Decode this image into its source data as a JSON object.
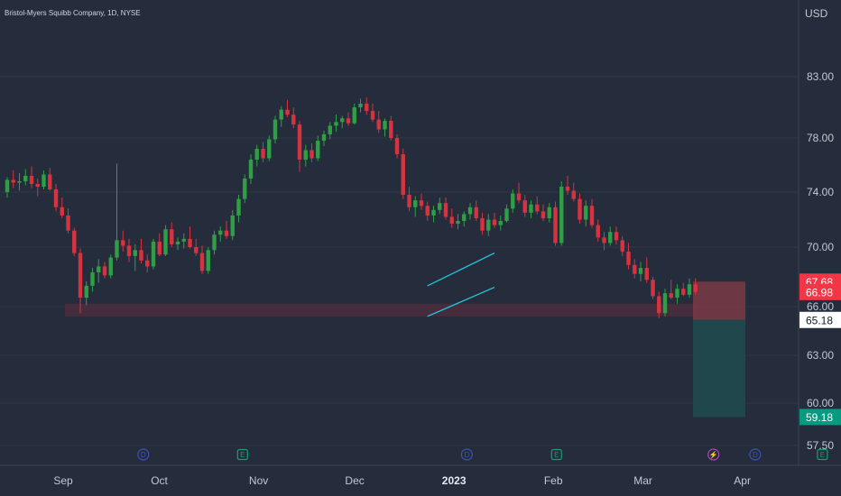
{
  "header": {
    "title": "Bristol-Myers Squibb Company, 1D, NYSE",
    "currency": "USD"
  },
  "chart_data": {
    "type": "candlestick",
    "title": "Bristol-Myers Squibb Company, 1D, NYSE",
    "currency": "USD",
    "ylim": [
      56.5,
      85.5
    ],
    "y_ticks": [
      57.5,
      60.0,
      63.0,
      66.0,
      70.0,
      74.0,
      78.0,
      83.0
    ],
    "x_ticks": [
      {
        "label": "Sep",
        "date": "2022-09-01"
      },
      {
        "label": "Oct",
        "date": "2022-10-01"
      },
      {
        "label": "Nov",
        "date": "2022-11-01"
      },
      {
        "label": "Dec",
        "date": "2022-12-01"
      },
      {
        "label": "2023",
        "date": "2023-01-01"
      },
      {
        "label": "Feb",
        "date": "2023-02-01"
      },
      {
        "label": "Mar",
        "date": "2023-03-01"
      },
      {
        "label": "Apr",
        "date": "2023-04-01"
      }
    ],
    "price_labels": [
      {
        "value": "67.68",
        "bg": "#f23645"
      },
      {
        "value": "66.98",
        "bg": "#f23645"
      },
      {
        "value": "65.18",
        "bg": "#ffffff"
      },
      {
        "value": "59.18",
        "bg": "#089981"
      }
    ],
    "support_zone": {
      "low": 65.4,
      "high": 66.2
    },
    "channel": {
      "upper": [
        [
          69,
          67.4
        ],
        [
          80,
          69.6
        ]
      ],
      "lower": [
        [
          69,
          65.4
        ],
        [
          80,
          67.3
        ]
      ]
    },
    "position": {
      "entry": 65.18,
      "stop": 67.68,
      "target": 59.18
    },
    "event_markers": [
      {
        "date": "2022-09-26",
        "letter": "D",
        "kind": "dividend"
      },
      {
        "date": "2022-10-27",
        "letter": "E",
        "kind": "earnings"
      },
      {
        "date": "2023-01-05",
        "letter": "D",
        "kind": "dividend"
      },
      {
        "date": "2023-02-02",
        "letter": "E",
        "kind": "earnings"
      },
      {
        "date": "2023-03-23",
        "letter": "⚡",
        "kind": "event"
      },
      {
        "date": "2023-04-05",
        "letter": "D",
        "kind": "dividend"
      },
      {
        "date": "2023-04-26",
        "letter": "E",
        "kind": "earnings"
      }
    ],
    "candles": [
      [
        74.0,
        75.1,
        73.6,
        74.9
      ],
      [
        74.9,
        75.6,
        74.3,
        74.7
      ],
      [
        74.7,
        75.4,
        74.1,
        74.8
      ],
      [
        74.8,
        75.7,
        74.5,
        75.2
      ],
      [
        75.2,
        75.9,
        74.3,
        74.6
      ],
      [
        74.6,
        75.0,
        73.7,
        74.4
      ],
      [
        74.4,
        75.6,
        74.2,
        75.3
      ],
      [
        75.3,
        75.8,
        74.1,
        74.2
      ],
      [
        74.2,
        74.6,
        72.6,
        72.9
      ],
      [
        72.9,
        73.6,
        72.1,
        72.3
      ],
      [
        72.3,
        72.8,
        71.0,
        71.2
      ],
      [
        71.2,
        71.4,
        69.4,
        69.6
      ],
      [
        69.6,
        69.9,
        65.6,
        66.6
      ],
      [
        66.6,
        67.7,
        66.1,
        67.4
      ],
      [
        67.4,
        68.6,
        67.0,
        68.3
      ],
      [
        68.3,
        69.2,
        67.6,
        68.7
      ],
      [
        68.7,
        69.0,
        67.9,
        68.1
      ],
      [
        68.1,
        69.5,
        67.9,
        69.3
      ],
      [
        69.3,
        76.1,
        69.1,
        70.5
      ],
      [
        70.5,
        71.2,
        69.7,
        70.1
      ],
      [
        70.1,
        70.6,
        69.0,
        69.4
      ],
      [
        69.4,
        70.2,
        68.4,
        69.8
      ],
      [
        69.8,
        70.6,
        68.9,
        69.1
      ],
      [
        69.1,
        69.5,
        68.3,
        68.7
      ],
      [
        68.7,
        70.6,
        68.5,
        70.4
      ],
      [
        70.4,
        71.0,
        69.4,
        69.5
      ],
      [
        69.5,
        71.6,
        69.4,
        71.3
      ],
      [
        71.3,
        71.8,
        70.0,
        70.2
      ],
      [
        70.2,
        70.7,
        69.8,
        70.4
      ],
      [
        70.4,
        71.0,
        69.9,
        70.6
      ],
      [
        70.6,
        71.5,
        69.9,
        70.0
      ],
      [
        70.0,
        70.6,
        69.4,
        69.6
      ],
      [
        69.6,
        70.1,
        68.2,
        68.4
      ],
      [
        68.4,
        70.0,
        68.2,
        69.8
      ],
      [
        69.8,
        71.2,
        69.5,
        70.9
      ],
      [
        70.9,
        71.5,
        70.4,
        71.2
      ],
      [
        71.2,
        71.9,
        70.6,
        70.8
      ],
      [
        70.8,
        72.7,
        70.5,
        72.3
      ],
      [
        72.3,
        73.8,
        71.8,
        73.5
      ],
      [
        73.5,
        75.3,
        73.2,
        75.0
      ],
      [
        75.0,
        76.8,
        74.6,
        76.4
      ],
      [
        76.4,
        77.5,
        75.9,
        77.2
      ],
      [
        77.2,
        77.7,
        76.2,
        76.5
      ],
      [
        76.5,
        78.2,
        76.3,
        77.9
      ],
      [
        77.9,
        79.8,
        77.6,
        79.5
      ],
      [
        79.5,
        80.6,
        78.9,
        80.3
      ],
      [
        80.3,
        81.1,
        79.7,
        79.9
      ],
      [
        79.9,
        80.5,
        78.8,
        79.1
      ],
      [
        79.1,
        79.4,
        75.5,
        76.4
      ],
      [
        76.4,
        77.5,
        75.9,
        77.1
      ],
      [
        77.1,
        77.6,
        76.2,
        76.5
      ],
      [
        76.5,
        78.2,
        76.3,
        77.8
      ],
      [
        77.8,
        78.6,
        77.4,
        78.3
      ],
      [
        78.3,
        79.3,
        77.9,
        79.0
      ],
      [
        79.0,
        79.9,
        78.5,
        79.3
      ],
      [
        79.3,
        79.8,
        78.8,
        79.6
      ],
      [
        79.6,
        80.1,
        79.0,
        79.2
      ],
      [
        79.2,
        80.8,
        79.1,
        80.5
      ],
      [
        80.5,
        81.2,
        80.1,
        80.8
      ],
      [
        80.8,
        81.3,
        79.9,
        80.2
      ],
      [
        80.2,
        80.8,
        79.3,
        79.5
      ],
      [
        79.5,
        80.2,
        78.4,
        78.7
      ],
      [
        78.7,
        79.6,
        78.1,
        79.4
      ],
      [
        79.4,
        79.8,
        77.8,
        78.0
      ],
      [
        78.0,
        78.3,
        76.5,
        76.8
      ],
      [
        76.8,
        77.2,
        73.5,
        73.8
      ],
      [
        73.8,
        74.4,
        72.6,
        72.9
      ],
      [
        72.9,
        73.7,
        72.2,
        73.4
      ],
      [
        73.4,
        73.9,
        72.7,
        73.0
      ],
      [
        73.0,
        73.3,
        71.9,
        72.3
      ],
      [
        72.3,
        73.0,
        71.8,
        72.7
      ],
      [
        72.7,
        73.6,
        72.4,
        73.2
      ],
      [
        73.2,
        73.6,
        72.0,
        72.2
      ],
      [
        72.2,
        72.8,
        71.4,
        71.7
      ],
      [
        71.7,
        72.4,
        71.3,
        71.9
      ],
      [
        71.9,
        72.6,
        71.5,
        72.4
      ],
      [
        72.4,
        73.2,
        72.0,
        72.9
      ],
      [
        72.9,
        73.4,
        71.9,
        72.1
      ],
      [
        72.1,
        72.5,
        70.9,
        71.2
      ],
      [
        71.2,
        72.4,
        70.8,
        72.0
      ],
      [
        72.0,
        72.5,
        71.4,
        71.6
      ],
      [
        71.6,
        72.3,
        71.2,
        71.9
      ],
      [
        71.9,
        73.1,
        71.8,
        72.8
      ],
      [
        72.8,
        74.2,
        72.5,
        73.9
      ],
      [
        73.9,
        74.7,
        73.2,
        73.4
      ],
      [
        73.4,
        73.8,
        72.2,
        72.5
      ],
      [
        72.5,
        73.4,
        72.1,
        73.1
      ],
      [
        73.1,
        73.7,
        72.4,
        72.6
      ],
      [
        72.6,
        73.1,
        71.9,
        72.1
      ],
      [
        72.1,
        73.2,
        71.8,
        72.9
      ],
      [
        72.9,
        73.3,
        70.1,
        70.3
      ],
      [
        70.3,
        74.8,
        70.1,
        74.4
      ],
      [
        74.4,
        75.2,
        73.8,
        74.1
      ],
      [
        74.1,
        74.7,
        73.3,
        73.5
      ],
      [
        73.5,
        73.9,
        71.7,
        72.0
      ],
      [
        72.0,
        73.4,
        71.5,
        73.0
      ],
      [
        73.0,
        73.5,
        71.4,
        71.6
      ],
      [
        71.6,
        72.0,
        70.4,
        70.7
      ],
      [
        70.7,
        71.1,
        69.8,
        70.3
      ],
      [
        70.3,
        71.5,
        70.1,
        71.1
      ],
      [
        71.1,
        71.5,
        70.2,
        70.5
      ],
      [
        70.5,
        70.8,
        69.4,
        69.7
      ],
      [
        69.7,
        70.3,
        68.5,
        68.8
      ],
      [
        68.8,
        69.2,
        67.9,
        68.2
      ],
      [
        68.2,
        69.0,
        67.7,
        68.6
      ],
      [
        68.6,
        69.3,
        67.6,
        67.8
      ],
      [
        67.8,
        68.0,
        66.5,
        66.7
      ],
      [
        66.7,
        67.0,
        65.3,
        65.6
      ],
      [
        65.6,
        67.2,
        65.4,
        66.9
      ],
      [
        66.9,
        67.8,
        66.5,
        66.6
      ],
      [
        66.6,
        67.5,
        66.2,
        67.2
      ],
      [
        67.2,
        67.6,
        66.7,
        66.8
      ],
      [
        66.8,
        67.9,
        66.6,
        67.5
      ],
      [
        67.5,
        67.9,
        66.8,
        66.98
      ]
    ]
  },
  "colors": {
    "background": "#252d3d",
    "bull": "#2f9e44",
    "bear": "#d8323f",
    "grid": "#2e3647",
    "axis_text": "#c3c8d2",
    "channel": "#26c6da",
    "stop_zone": "#7a3a44",
    "target_zone": "#1f4a4e",
    "support_zone": "#4a2d3e"
  }
}
